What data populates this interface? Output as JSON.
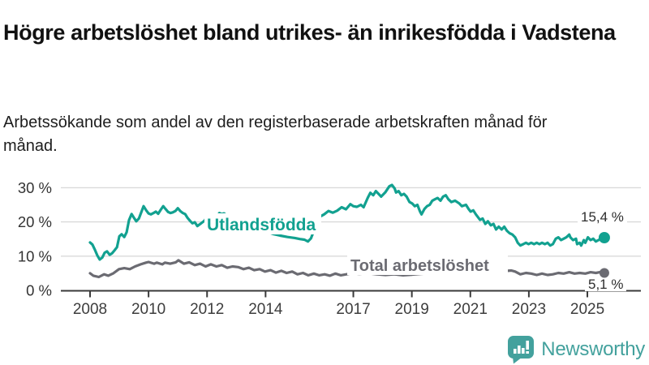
{
  "header": {
    "title": "Högre arbetslöshet bland utrikes- än inrikesfödda i Vadstena",
    "subtitle": "Arbetssökande som andel av den registerbaserade arbetskraften månad för månad."
  },
  "footer": {
    "brand": "Newsworthy",
    "logo_icon": "bar-chart-speech-bubble-icon"
  },
  "colors": {
    "accent_teal": "#12a190",
    "series_gray": "#6b6b72",
    "axis": "#3a3a3a",
    "grid": "#d9d9d9",
    "value_label": "#2e2e2e",
    "logo": "#43a19d",
    "background": "#ffffff"
  },
  "chart_data": {
    "type": "line",
    "title": "Högre arbetslöshet bland utrikes- än inrikesfödda i Vadstena",
    "subtitle": "Arbetssökande som andel av den registerbaserade arbetskraften månad för månad.",
    "unit": "%",
    "x_range": [
      2008,
      2025.6
    ],
    "ylim": [
      0,
      32
    ],
    "grid": "horizontal",
    "legend_position": "inline-labels",
    "x_ticks": [
      2008,
      2010,
      2012,
      2014,
      2017,
      2019,
      2021,
      2023,
      2025
    ],
    "y_ticks": [
      {
        "value": 0,
        "label": "0 %"
      },
      {
        "value": 10,
        "label": "10 %"
      },
      {
        "value": 20,
        "label": "20 %"
      },
      {
        "value": 30,
        "label": "30 %"
      }
    ],
    "series": [
      {
        "name": "Utlandsfödda",
        "color": "#12a190",
        "end_label": "15,4 %",
        "end_value": 15.4,
        "points": [
          [
            2008.0,
            14.0
          ],
          [
            2008.08,
            13.4
          ],
          [
            2008.17,
            11.8
          ],
          [
            2008.25,
            10.2
          ],
          [
            2008.33,
            9.0
          ],
          [
            2008.42,
            9.6
          ],
          [
            2008.5,
            11.0
          ],
          [
            2008.58,
            11.4
          ],
          [
            2008.67,
            10.4
          ],
          [
            2008.75,
            10.8
          ],
          [
            2008.83,
            11.6
          ],
          [
            2008.92,
            12.6
          ],
          [
            2009.0,
            15.8
          ],
          [
            2009.08,
            16.4
          ],
          [
            2009.17,
            15.6
          ],
          [
            2009.25,
            17.0
          ],
          [
            2009.33,
            20.5
          ],
          [
            2009.42,
            22.3
          ],
          [
            2009.5,
            21.2
          ],
          [
            2009.58,
            20.2
          ],
          [
            2009.67,
            21.0
          ],
          [
            2009.75,
            22.8
          ],
          [
            2009.83,
            24.6
          ],
          [
            2009.92,
            23.4
          ],
          [
            2010.0,
            22.5
          ],
          [
            2010.08,
            22.2
          ],
          [
            2010.17,
            22.6
          ],
          [
            2010.25,
            23.0
          ],
          [
            2010.33,
            22.4
          ],
          [
            2010.42,
            23.6
          ],
          [
            2010.5,
            24.6
          ],
          [
            2010.58,
            23.8
          ],
          [
            2010.67,
            22.9
          ],
          [
            2010.75,
            22.6
          ],
          [
            2010.83,
            22.8
          ],
          [
            2010.92,
            23.2
          ],
          [
            2011.0,
            24.0
          ],
          [
            2011.08,
            23.2
          ],
          [
            2011.17,
            22.6
          ],
          [
            2011.25,
            22.3
          ],
          [
            2011.33,
            21.2
          ],
          [
            2011.42,
            20.3
          ],
          [
            2011.5,
            19.6
          ],
          [
            2011.58,
            19.9
          ],
          [
            2011.67,
            18.8
          ],
          [
            2011.75,
            19.3
          ],
          [
            2011.83,
            19.8
          ],
          [
            2011.92,
            20.4
          ],
          [
            2012.0,
            21.6
          ],
          [
            2012.08,
            20.6
          ],
          [
            2012.17,
            19.2
          ],
          [
            2012.25,
            19.6
          ],
          [
            2012.33,
            21.4
          ],
          [
            2012.42,
            22.6
          ],
          [
            2012.5,
            22.3
          ],
          [
            2012.58,
            22.5
          ],
          [
            2012.75,
            21.4
          ],
          [
            2013.0,
            20.4
          ],
          [
            2013.25,
            19.4
          ],
          [
            2013.5,
            18.6
          ],
          [
            2013.75,
            17.8
          ],
          [
            2014.0,
            17.2
          ],
          [
            2014.25,
            16.5
          ],
          [
            2014.5,
            16.0
          ],
          [
            2014.75,
            15.6
          ],
          [
            2015.0,
            15.3
          ],
          [
            2015.17,
            15.0
          ],
          [
            2015.33,
            14.8
          ],
          [
            2015.45,
            14.3
          ],
          [
            2015.55,
            15.2
          ],
          [
            2015.7,
            18.5
          ],
          [
            2015.85,
            21.5
          ],
          [
            2016.0,
            22.2
          ],
          [
            2016.15,
            23.2
          ],
          [
            2016.3,
            22.7
          ],
          [
            2016.45,
            23.3
          ],
          [
            2016.6,
            24.3
          ],
          [
            2016.75,
            23.7
          ],
          [
            2016.9,
            25.2
          ],
          [
            2017.0,
            24.6
          ],
          [
            2017.12,
            24.4
          ],
          [
            2017.26,
            25.0
          ],
          [
            2017.35,
            24.3
          ],
          [
            2017.49,
            27.0
          ],
          [
            2017.58,
            28.5
          ],
          [
            2017.68,
            27.8
          ],
          [
            2017.77,
            29.0
          ],
          [
            2017.86,
            28.2
          ],
          [
            2017.95,
            27.4
          ],
          [
            2018.09,
            28.6
          ],
          [
            2018.23,
            30.4
          ],
          [
            2018.32,
            30.8
          ],
          [
            2018.41,
            29.8
          ],
          [
            2018.46,
            28.6
          ],
          [
            2018.55,
            29.0
          ],
          [
            2018.64,
            27.8
          ],
          [
            2018.73,
            28.2
          ],
          [
            2018.82,
            27.4
          ],
          [
            2018.92,
            25.8
          ],
          [
            2019.01,
            25.4
          ],
          [
            2019.1,
            24.6
          ],
          [
            2019.19,
            25.0
          ],
          [
            2019.28,
            23.0
          ],
          [
            2019.33,
            22.2
          ],
          [
            2019.43,
            23.8
          ],
          [
            2019.52,
            24.6
          ],
          [
            2019.61,
            25.0
          ],
          [
            2019.7,
            26.2
          ],
          [
            2019.79,
            26.6
          ],
          [
            2019.88,
            27.0
          ],
          [
            2019.98,
            26.2
          ],
          [
            2020.07,
            27.4
          ],
          [
            2020.16,
            27.8
          ],
          [
            2020.25,
            26.6
          ],
          [
            2020.35,
            25.8
          ],
          [
            2020.48,
            26.2
          ],
          [
            2020.62,
            25.4
          ],
          [
            2020.71,
            24.6
          ],
          [
            2020.85,
            25.0
          ],
          [
            2020.94,
            23.8
          ],
          [
            2021.01,
            23.0
          ],
          [
            2021.1,
            23.4
          ],
          [
            2021.19,
            22.2
          ],
          [
            2021.33,
            20.6
          ],
          [
            2021.42,
            21.0
          ],
          [
            2021.51,
            19.4
          ],
          [
            2021.6,
            20.2
          ],
          [
            2021.7,
            19.0
          ],
          [
            2021.79,
            19.4
          ],
          [
            2021.88,
            17.8
          ],
          [
            2021.97,
            18.6
          ],
          [
            2022.07,
            17.8
          ],
          [
            2022.16,
            18.6
          ],
          [
            2022.25,
            17.4
          ],
          [
            2022.34,
            16.7
          ],
          [
            2022.44,
            16.3
          ],
          [
            2022.53,
            15.5
          ],
          [
            2022.62,
            13.9
          ],
          [
            2022.71,
            13.1
          ],
          [
            2022.81,
            13.5
          ],
          [
            2022.9,
            13.9
          ],
          [
            2022.99,
            13.5
          ],
          [
            2023.08,
            13.9
          ],
          [
            2023.18,
            13.5
          ],
          [
            2023.27,
            13.9
          ],
          [
            2023.36,
            13.5
          ],
          [
            2023.45,
            13.9
          ],
          [
            2023.55,
            13.5
          ],
          [
            2023.64,
            13.9
          ],
          [
            2023.73,
            13.1
          ],
          [
            2023.82,
            13.5
          ],
          [
            2023.92,
            15.1
          ],
          [
            2024.01,
            15.5
          ],
          [
            2024.1,
            14.7
          ],
          [
            2024.19,
            15.1
          ],
          [
            2024.28,
            15.5
          ],
          [
            2024.38,
            16.3
          ],
          [
            2024.42,
            15.5
          ],
          [
            2024.51,
            14.7
          ],
          [
            2024.61,
            15.1
          ],
          [
            2024.65,
            13.5
          ],
          [
            2024.74,
            13.9
          ],
          [
            2024.79,
            13.1
          ],
          [
            2024.88,
            14.7
          ],
          [
            2024.93,
            13.9
          ],
          [
            2025.02,
            15.5
          ],
          [
            2025.11,
            14.7
          ],
          [
            2025.2,
            15.1
          ],
          [
            2025.29,
            14.3
          ],
          [
            2025.38,
            14.7
          ],
          [
            2025.48,
            15.2
          ],
          [
            2025.58,
            15.4
          ]
        ]
      },
      {
        "name": "Total arbetslöshet",
        "color": "#6b6b72",
        "end_label": "5,1 %",
        "end_value": 5.1,
        "points": [
          [
            2008.0,
            5.0
          ],
          [
            2008.11,
            4.3
          ],
          [
            2008.3,
            3.9
          ],
          [
            2008.48,
            4.7
          ],
          [
            2008.62,
            4.3
          ],
          [
            2008.8,
            5.0
          ],
          [
            2008.99,
            6.2
          ],
          [
            2009.17,
            6.5
          ],
          [
            2009.36,
            6.2
          ],
          [
            2009.54,
            7.0
          ],
          [
            2009.73,
            7.6
          ],
          [
            2009.91,
            8.1
          ],
          [
            2010.0,
            8.3
          ],
          [
            2010.19,
            7.8
          ],
          [
            2010.28,
            8.1
          ],
          [
            2010.47,
            7.6
          ],
          [
            2010.56,
            8.1
          ],
          [
            2010.74,
            7.8
          ],
          [
            2010.93,
            8.2
          ],
          [
            2011.02,
            8.8
          ],
          [
            2011.21,
            7.8
          ],
          [
            2011.39,
            8.2
          ],
          [
            2011.58,
            7.4
          ],
          [
            2011.76,
            7.8
          ],
          [
            2011.95,
            7.0
          ],
          [
            2012.13,
            7.6
          ],
          [
            2012.32,
            7.0
          ],
          [
            2012.5,
            7.4
          ],
          [
            2012.69,
            6.6
          ],
          [
            2012.87,
            7.0
          ],
          [
            2013.06,
            6.8
          ],
          [
            2013.24,
            6.2
          ],
          [
            2013.43,
            6.6
          ],
          [
            2013.61,
            5.9
          ],
          [
            2013.8,
            6.2
          ],
          [
            2013.98,
            5.5
          ],
          [
            2014.17,
            5.9
          ],
          [
            2014.35,
            5.2
          ],
          [
            2014.54,
            5.7
          ],
          [
            2014.72,
            5.1
          ],
          [
            2014.91,
            5.5
          ],
          [
            2015.09,
            4.7
          ],
          [
            2015.28,
            5.1
          ],
          [
            2015.46,
            4.4
          ],
          [
            2015.65,
            4.9
          ],
          [
            2015.83,
            4.4
          ],
          [
            2016.02,
            4.7
          ],
          [
            2016.2,
            4.3
          ],
          [
            2016.39,
            4.9
          ],
          [
            2016.57,
            4.4
          ],
          [
            2016.76,
            4.7
          ],
          [
            2016.94,
            5.0
          ],
          [
            2017.2,
            4.8
          ],
          [
            2017.5,
            5.0
          ],
          [
            2017.8,
            4.7
          ],
          [
            2018.1,
            4.5
          ],
          [
            2018.4,
            4.7
          ],
          [
            2018.7,
            4.4
          ],
          [
            2019.0,
            4.6
          ],
          [
            2019.3,
            4.8
          ],
          [
            2019.6,
            5.0
          ],
          [
            2019.9,
            5.2
          ],
          [
            2020.2,
            6.0
          ],
          [
            2020.4,
            6.5
          ],
          [
            2020.7,
            6.3
          ],
          [
            2021.0,
            6.0
          ],
          [
            2021.3,
            5.8
          ],
          [
            2021.6,
            5.5
          ],
          [
            2021.9,
            5.3
          ],
          [
            2022.1,
            5.6
          ],
          [
            2022.4,
            5.8
          ],
          [
            2022.53,
            5.5
          ],
          [
            2022.71,
            4.7
          ],
          [
            2022.9,
            5.1
          ],
          [
            2023.08,
            4.9
          ],
          [
            2023.27,
            4.5
          ],
          [
            2023.45,
            4.9
          ],
          [
            2023.64,
            4.5
          ],
          [
            2023.82,
            4.7
          ],
          [
            2024.01,
            5.1
          ],
          [
            2024.19,
            4.9
          ],
          [
            2024.38,
            5.3
          ],
          [
            2024.56,
            4.9
          ],
          [
            2024.74,
            5.1
          ],
          [
            2024.93,
            4.9
          ],
          [
            2025.11,
            5.3
          ],
          [
            2025.29,
            5.1
          ],
          [
            2025.48,
            5.4
          ],
          [
            2025.58,
            5.1
          ]
        ]
      }
    ]
  }
}
